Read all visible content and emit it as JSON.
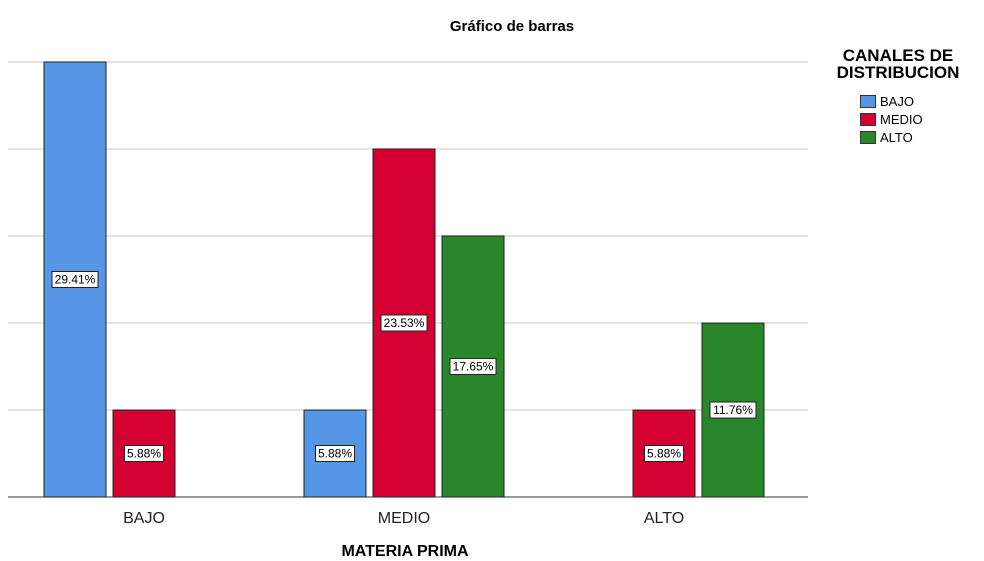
{
  "chart_data": {
    "type": "bar",
    "title": "Gráfico de barras",
    "x_label": "MATERIA PRIMA",
    "legend_title": "CANALES DE DISTRIBUCION",
    "legend_position": "right",
    "grid": true,
    "categories": [
      "BAJO",
      "MEDIO",
      "ALTO"
    ],
    "ylim": [
      0,
      29.41
    ],
    "yticks": [
      0,
      5.88,
      11.76,
      17.65,
      23.53,
      29.41
    ],
    "series": [
      {
        "name": "BAJO",
        "color": "#5596e6",
        "values": [
          29.41,
          5.88,
          null
        ],
        "value_labels": [
          "29.41%",
          "5.88%",
          null
        ]
      },
      {
        "name": "MEDIO",
        "color": "#d50032",
        "values": [
          5.88,
          23.53,
          5.88
        ],
        "value_labels": [
          "5.88%",
          "23.53%",
          "5.88%"
        ]
      },
      {
        "name": "ALTO",
        "color": "#2a862a",
        "values": [
          null,
          17.65,
          11.76
        ],
        "value_labels": [
          null,
          "17.65%",
          "11.76%"
        ]
      }
    ]
  }
}
